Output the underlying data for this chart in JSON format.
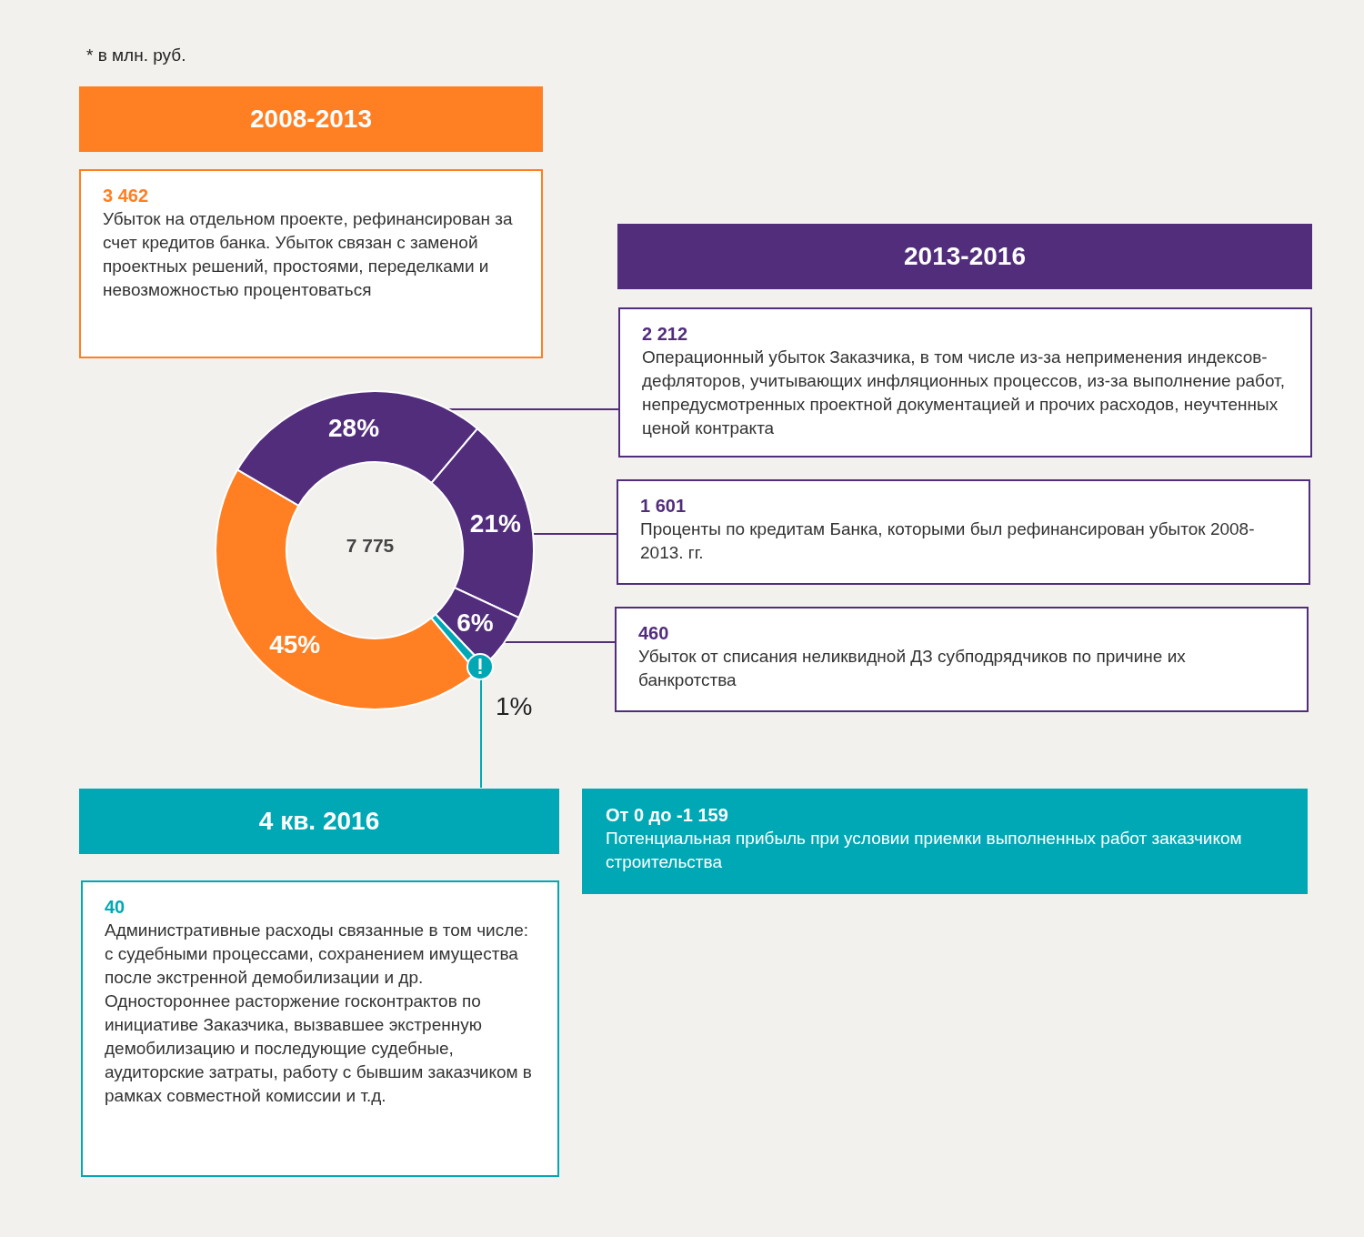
{
  "chart_data": {
    "type": "donut",
    "categories": [
      null,
      null,
      null,
      null,
      null
    ],
    "values": [
      45,
      28,
      21,
      6,
      1
    ],
    "colors": [
      "#ff7f22",
      "#512d7c",
      "#512d7c",
      "#512d7c",
      "#00a8b5"
    ],
    "value_labels": [
      "45%",
      "28%",
      "21%",
      "6%",
      "1%"
    ],
    "subtitle": "* в млн. руб.",
    "legend": false,
    "annotations": [
      "2008-2013",
      "3 462",
      "Убыток на отдельном проекте, рефинансирован за счет кредитов банка. Убыток связан с заменой проектных решений, простоями, переделками и невозможностью процентоваться",
      "2013-2016",
      "2 212",
      "Операционный убыток Заказчика, в том числе из-за неприменения индексов-дефляторов, учитывающих инфляционных процессов, из-за выполнение работ, непредусмотренных проектной документацией и прочих расходов, неучтенных ценой контракта",
      "1 601",
      "Проценты по кредитам Банка, которыми был рефинансирован убыток 2008-2013. гг.",
      "460",
      "Убыток от списания неликвидной ДЗ субподрядчиков по причине их банкротства",
      "4 кв. 2016",
      "40",
      "Административные расходы связанные в том числе: с судебными процессами, сохранением имущества после экстренной демобилизации и др. Одностороннее расторжение госконтрактов по инициативе Заказчика, вызвавшее экстренную демобилизацию и последующие судебные, аудиторские затраты, работу с бывшим заказчиком в рамках совместной комиссии и т.д.",
      "От 0 до -1 159",
      "Потенциальная прибыль при условии приемки выполненных работ заказчиком строительства",
      "7 775"
    ]
  }
}
